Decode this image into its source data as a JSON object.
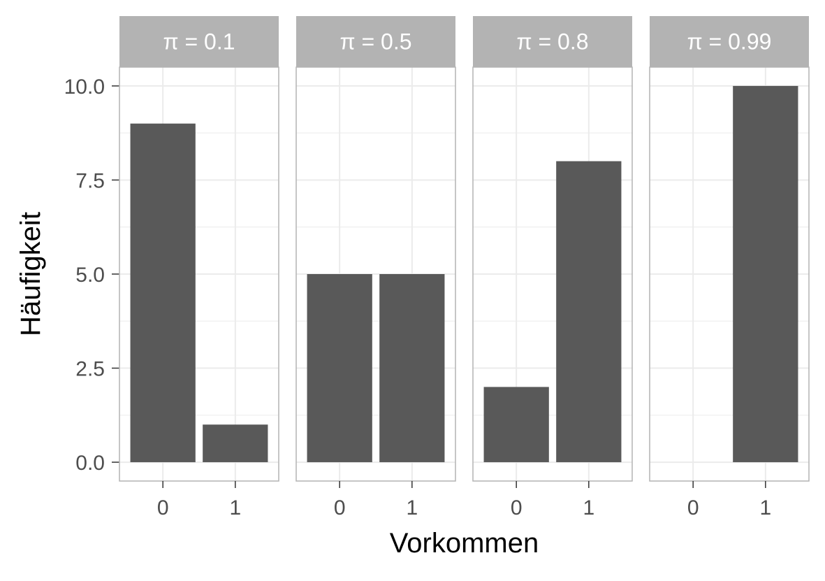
{
  "chart_data": {
    "type": "bar",
    "facet_variable": "π",
    "xlabel": "Vorkommen",
    "ylabel": "Häufigkeit",
    "ylim": [
      -0.5,
      10.5
    ],
    "y_ticks": [
      "0.0",
      "2.5",
      "5.0",
      "7.5",
      "10.0"
    ],
    "y_tick_values": [
      0,
      2.5,
      5,
      7.5,
      10
    ],
    "y_minor_values": [
      1.25,
      3.75,
      6.25,
      8.75
    ],
    "categories": [
      "0",
      "1"
    ],
    "grid": true,
    "theme": "light",
    "colors": {
      "bar": "#595959",
      "strip_background": "#b3b3b3",
      "grid": "#ebebeb",
      "panel_border": "#b3b3b3"
    },
    "facets": [
      {
        "strip_label": "π = 0.1",
        "values": [
          9,
          1
        ]
      },
      {
        "strip_label": "π = 0.5",
        "values": [
          5,
          5
        ]
      },
      {
        "strip_label": "π = 0.8",
        "values": [
          2,
          8
        ]
      },
      {
        "strip_label": "π = 0.99",
        "values": [
          0,
          10
        ]
      }
    ]
  }
}
